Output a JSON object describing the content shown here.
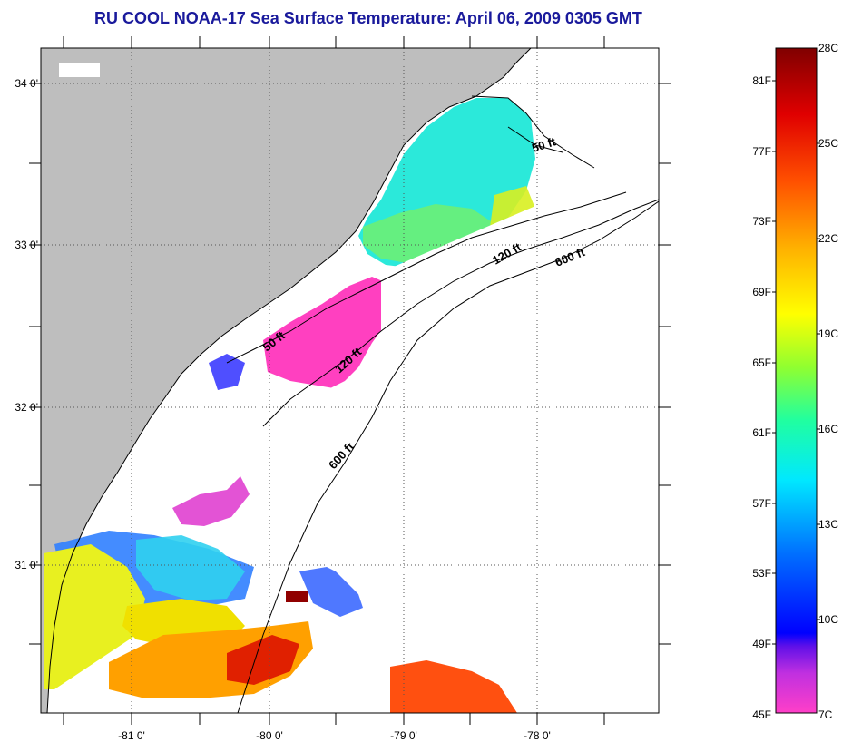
{
  "title": "RU COOL  NOAA-17  Sea Surface Temperature:  April 06, 2009 0305 GMT",
  "map": {
    "lat_labels": [
      "34 0'",
      "33 0'",
      "32 0'",
      "31 0'"
    ],
    "lon_labels": [
      "-81 0'",
      "-80 0'",
      "-79 0'",
      "-78 0'"
    ],
    "contour_labels": [
      "50 ft",
      "120 ft",
      "600 ft",
      "50 ft",
      "120 ft",
      "600 ft"
    ],
    "colors": {
      "land": "#bebebe",
      "cloud": "#ffffff",
      "frame": "#000000"
    }
  },
  "colorbar": {
    "fahrenheit_labels": [
      "81F",
      "77F",
      "73F",
      "69F",
      "65F",
      "61F",
      "57F",
      "53F",
      "49F",
      "45F"
    ],
    "celsius_labels": [
      "28C",
      "25C",
      "22C",
      "19C",
      "16C",
      "13C",
      "10C",
      "7C"
    ],
    "colors_bottom_to_top": [
      "#ff3fc8",
      "#c030e0",
      "#6010e8",
      "#0000ff",
      "#0070ff",
      "#00d0ff",
      "#00ffe0",
      "#40ff80",
      "#b0ff20",
      "#ffff00",
      "#ffc000",
      "#ff8000",
      "#ff3000",
      "#e00000",
      "#800000"
    ]
  }
}
